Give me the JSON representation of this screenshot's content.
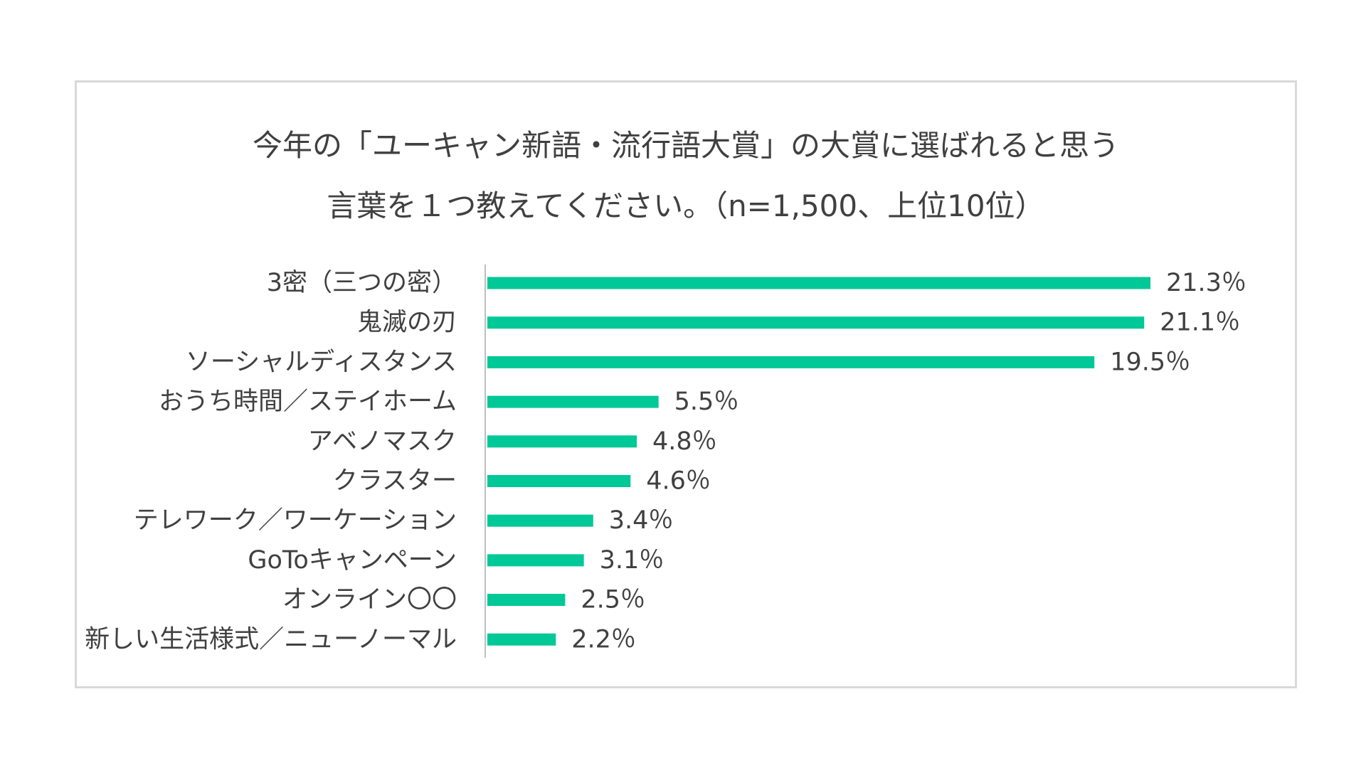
{
  "chart_data": {
    "type": "bar",
    "orientation": "horizontal",
    "title_line1": "今年の「ユーキャン新語・流行語大賞」の大賞に選ばれると思う",
    "title_line2": "言葉を１つ教えてください。（n=1,500、上位10位）",
    "categories": [
      "3密（三つの密）",
      "鬼滅の刃",
      "ソーシャルディスタンス",
      "おうち時間／ステイホーム",
      "アベノマスク",
      "クラスター",
      "テレワーク／ワーケーション",
      "GoToキャンペーン",
      "オンライン〇〇",
      "新しい生活様式／ニューノーマル"
    ],
    "values": [
      21.3,
      21.1,
      19.5,
      5.5,
      4.8,
      4.6,
      3.4,
      3.1,
      2.5,
      2.2
    ],
    "value_labels": [
      "21.3％",
      "21.1％",
      "19.5％",
      "5.5％",
      "4.8％",
      "4.6％",
      "3.4％",
      "3.1％",
      "2.5％",
      "2.2％"
    ],
    "unit": "%",
    "xlim": [
      0,
      21.3
    ],
    "grid": false,
    "legend": "none",
    "bar_color": "#00c896",
    "axis_color": "#bfbfbf"
  }
}
